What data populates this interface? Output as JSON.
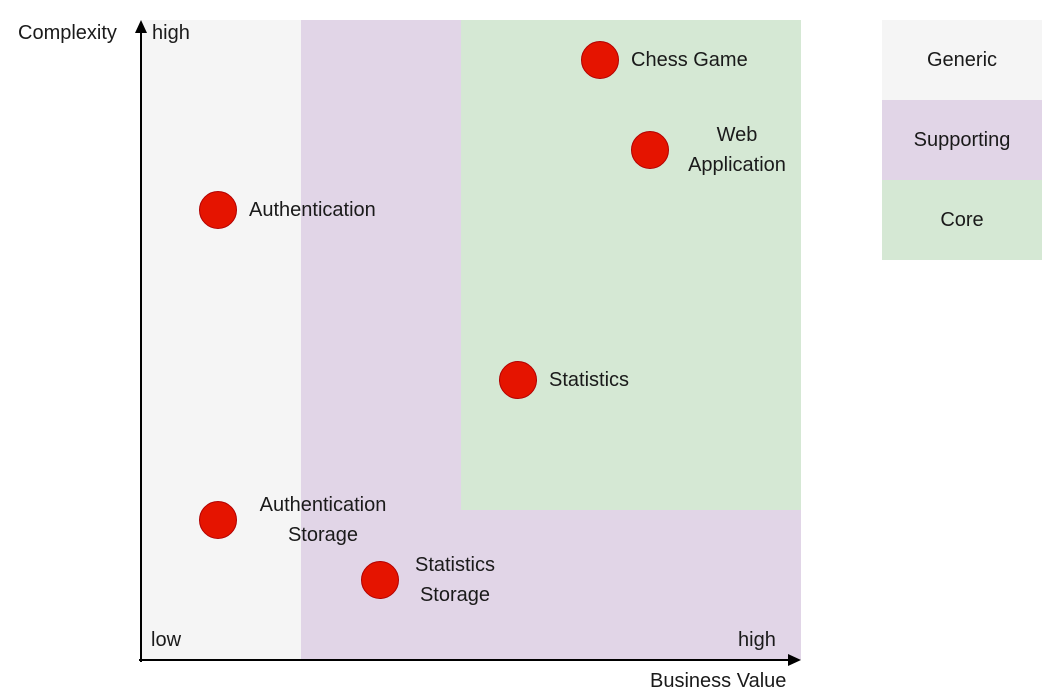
{
  "axes": {
    "y_title": "Complexity",
    "y_high": "high",
    "x_title": "Business Value",
    "x_low": "low",
    "x_high": "high"
  },
  "legend": [
    {
      "label": "Generic",
      "color": "#f5f5f5"
    },
    {
      "label": "Supporting",
      "color": "#e1d5e7"
    },
    {
      "label": "Core",
      "color": "#d5e8d4"
    }
  ],
  "points": {
    "chess_game": {
      "line1": "Chess Game"
    },
    "web_application": {
      "line1": "Web",
      "line2": "Application"
    },
    "authentication": {
      "line1": "Authentication"
    },
    "statistics": {
      "line1": "Statistics"
    },
    "authentication_storage": {
      "line1": "Authentication",
      "line2": "Storage"
    },
    "statistics_storage": {
      "line1": "Statistics",
      "line2": "Storage"
    }
  },
  "colors": {
    "point_fill": "#e51400",
    "point_stroke": "#b20000",
    "generic_zone": "#f5f5f5",
    "supporting_zone": "#e1d5e7",
    "core_zone": "#d5e8d4"
  }
}
